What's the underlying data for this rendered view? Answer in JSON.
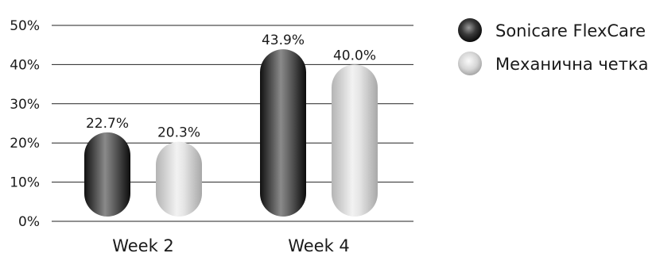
{
  "chart_data": {
    "type": "bar",
    "categories": [
      "Week 2",
      "Week 4"
    ],
    "series": [
      {
        "name": "Sonicare FlexCare",
        "values": [
          22.7,
          43.9
        ],
        "labels": [
          "22.7%",
          "43.9%"
        ],
        "color": "#1f1f1f"
      },
      {
        "name": "Механична четка",
        "values": [
          20.3,
          40.0
        ],
        "labels": [
          "20.3%",
          "40.0%"
        ],
        "color": "#cfcfcf"
      }
    ],
    "yticks": [
      "0%",
      "10%",
      "20%",
      "30%",
      "40%",
      "50%"
    ],
    "ylim": [
      0,
      50
    ],
    "grid": true,
    "legend_position": "top-right"
  }
}
